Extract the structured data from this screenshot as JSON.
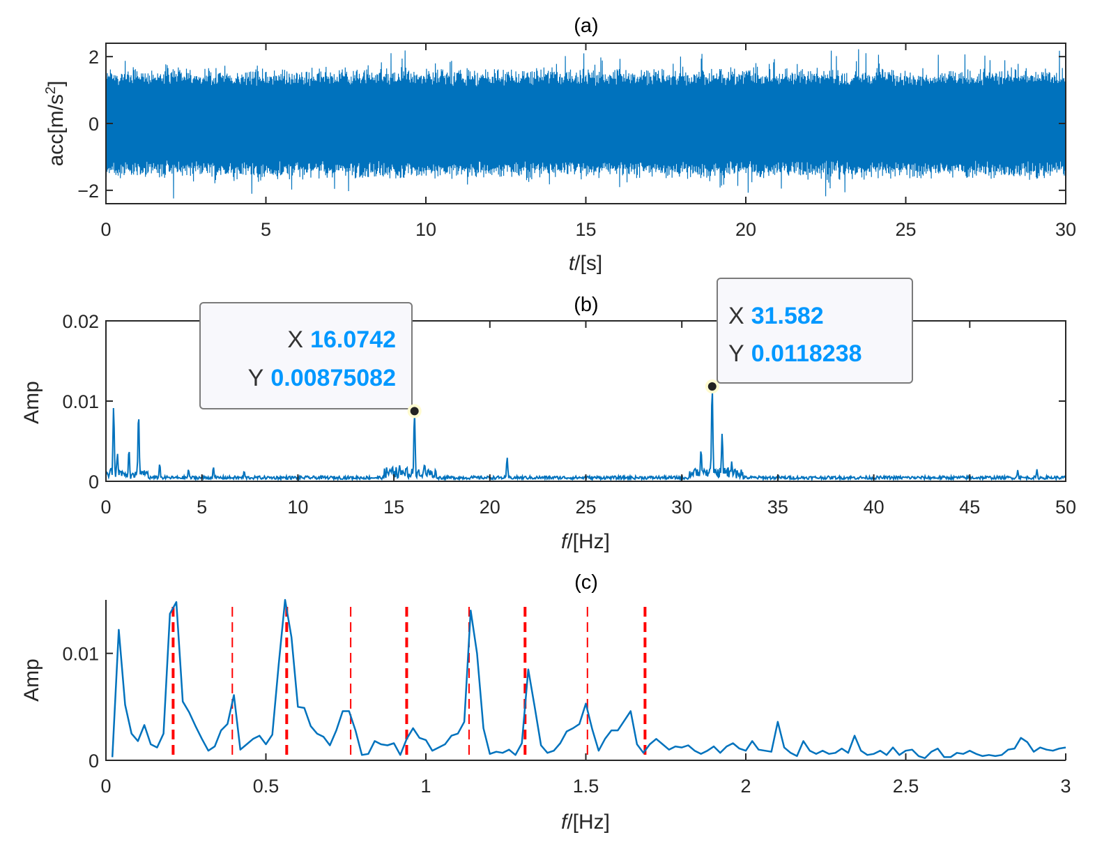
{
  "chart_data": [
    {
      "type": "line",
      "title": "(a)",
      "ylabel": "acc[m/s",
      "ylabel_sup": "2",
      "ylabel_end": "]",
      "xlabel_var": "t",
      "xlabel_unit": "/[s]",
      "xlim": [
        0,
        30
      ],
      "ylim": [
        -2.4,
        2.4
      ],
      "xticks": [
        "0",
        "5",
        "10",
        "15",
        "20",
        "25",
        "30"
      ],
      "yticks": [
        "−2",
        "0",
        "2"
      ],
      "series": [
        {
          "color": "#0072bd",
          "description": "dense random acceleration signal, envelope approx ±1.6 with peaks up to ±2.3"
        }
      ]
    },
    {
      "type": "line",
      "title": "(b)",
      "ylabel": "Amp",
      "xlabel_var": "f",
      "xlabel_unit": "/[Hz]",
      "xlim": [
        0,
        50
      ],
      "ylim": [
        0,
        0.02
      ],
      "xticks": [
        "0",
        "5",
        "10",
        "15",
        "20",
        "25",
        "30",
        "35",
        "40",
        "45",
        "50"
      ],
      "yticks": [
        "0",
        "0.01",
        "0.02"
      ],
      "peaks": [
        {
          "x": 0.4,
          "y": 0.0093
        },
        {
          "x": 0.6,
          "y": 0.0035
        },
        {
          "x": 1.2,
          "y": 0.004
        },
        {
          "x": 1.7,
          "y": 0.0085
        },
        {
          "x": 2.8,
          "y": 0.0022
        },
        {
          "x": 4.3,
          "y": 0.0015
        },
        {
          "x": 5.6,
          "y": 0.0018
        },
        {
          "x": 7.2,
          "y": 0.0013
        },
        {
          "x": 15.3,
          "y": 0.002
        },
        {
          "x": 16.0742,
          "y": 0.00875082
        },
        {
          "x": 16.6,
          "y": 0.0022
        },
        {
          "x": 20.9,
          "y": 0.003
        },
        {
          "x": 31.0,
          "y": 0.004
        },
        {
          "x": 31.582,
          "y": 0.0118238
        },
        {
          "x": 32.1,
          "y": 0.006
        },
        {
          "x": 32.6,
          "y": 0.0025
        },
        {
          "x": 47.5,
          "y": 0.0014
        },
        {
          "x": 48.5,
          "y": 0.0015
        }
      ],
      "datatips": [
        {
          "x_key": "X",
          "x_val": "16.0742",
          "y_key": "Y",
          "y_val": "0.00875082",
          "x": 16.0742,
          "y": 0.00875082
        },
        {
          "x_key": "X",
          "x_val": "31.582",
          "y_key": "Y",
          "y_val": "0.0118238",
          "x": 31.582,
          "y": 0.0118238
        }
      ]
    },
    {
      "type": "line",
      "title": "(c)",
      "ylabel": "Amp",
      "xlabel_var": "f",
      "xlabel_unit": "/[Hz]",
      "xlim": [
        0,
        3
      ],
      "ylim": [
        0,
        0.015
      ],
      "xticks": [
        "0",
        "0.5",
        "1",
        "1.5",
        "2",
        "2.5",
        "3"
      ],
      "yticks": [
        "0",
        "0.01"
      ],
      "x": [
        0.02,
        0.04,
        0.06,
        0.08,
        0.1,
        0.12,
        0.14,
        0.16,
        0.18,
        0.2,
        0.22,
        0.24,
        0.26,
        0.28,
        0.3,
        0.32,
        0.34,
        0.36,
        0.38,
        0.4,
        0.42,
        0.44,
        0.46,
        0.48,
        0.5,
        0.52,
        0.54,
        0.56,
        0.58,
        0.6,
        0.62,
        0.64,
        0.66,
        0.68,
        0.7,
        0.72,
        0.74,
        0.76,
        0.78,
        0.8,
        0.82,
        0.84,
        0.86,
        0.88,
        0.9,
        0.92,
        0.94,
        0.96,
        0.98,
        1.0,
        1.02,
        1.04,
        1.06,
        1.08,
        1.1,
        1.12,
        1.14,
        1.16,
        1.18,
        1.2,
        1.22,
        1.24,
        1.26,
        1.28,
        1.3,
        1.32,
        1.34,
        1.36,
        1.38,
        1.4,
        1.42,
        1.44,
        1.46,
        1.48,
        1.5,
        1.52,
        1.54,
        1.56,
        1.58,
        1.6,
        1.62,
        1.64,
        1.66,
        1.68,
        1.7,
        1.72,
        1.74,
        1.76,
        1.78,
        1.8,
        1.82,
        1.84,
        1.86,
        1.88,
        1.9,
        1.92,
        1.94,
        1.96,
        1.98,
        2.0,
        2.02,
        2.04,
        2.06,
        2.08,
        2.1,
        2.12,
        2.14,
        2.16,
        2.18,
        2.2,
        2.22,
        2.24,
        2.26,
        2.28,
        2.3,
        2.32,
        2.34,
        2.36,
        2.38,
        2.4,
        2.42,
        2.44,
        2.46,
        2.48,
        2.5,
        2.52,
        2.54,
        2.56,
        2.58,
        2.6,
        2.62,
        2.64,
        2.66,
        2.68,
        2.7,
        2.72,
        2.74,
        2.76,
        2.78,
        2.8,
        2.82,
        2.84,
        2.86,
        2.88,
        2.9,
        2.92,
        2.94,
        2.96,
        2.98,
        3.0
      ],
      "y": [
        0.0003,
        0.0122,
        0.0052,
        0.0025,
        0.0018,
        0.0033,
        0.0015,
        0.0012,
        0.0025,
        0.0137,
        0.0148,
        0.0055,
        0.0045,
        0.0032,
        0.002,
        0.0009,
        0.0013,
        0.0028,
        0.0034,
        0.0061,
        0.001,
        0.0015,
        0.002,
        0.0023,
        0.0015,
        0.0024,
        0.009,
        0.015,
        0.0115,
        0.005,
        0.0049,
        0.0032,
        0.0025,
        0.0022,
        0.0014,
        0.0028,
        0.0046,
        0.0046,
        0.0028,
        0.0005,
        0.0006,
        0.0018,
        0.0015,
        0.0014,
        0.0016,
        0.0005,
        0.002,
        0.003,
        0.0021,
        0.0019,
        0.0009,
        0.0012,
        0.0015,
        0.0023,
        0.0025,
        0.0036,
        0.014,
        0.01,
        0.003,
        0.0006,
        0.0008,
        0.0007,
        0.001,
        0.0005,
        0.0016,
        0.0085,
        0.005,
        0.0014,
        0.0007,
        0.0009,
        0.0016,
        0.0027,
        0.003,
        0.0034,
        0.0053,
        0.0029,
        0.0009,
        0.002,
        0.0028,
        0.0028,
        0.0037,
        0.0046,
        0.0015,
        0.0007,
        0.0015,
        0.002,
        0.0015,
        0.001,
        0.0013,
        0.0012,
        0.0014,
        0.0009,
        0.0006,
        0.0009,
        0.0013,
        0.0007,
        0.0013,
        0.0016,
        0.0011,
        0.0009,
        0.0018,
        0.001,
        0.0009,
        0.0008,
        0.0036,
        0.0012,
        0.0007,
        0.0004,
        0.0018,
        0.0009,
        0.0006,
        0.0009,
        0.0006,
        0.0007,
        0.0011,
        0.0007,
        0.0023,
        0.0009,
        0.0005,
        0.0006,
        0.0009,
        0.0005,
        0.0012,
        0.0005,
        0.0009,
        0.001,
        0.0004,
        0.0002,
        0.0008,
        0.0011,
        0.0003,
        0.0003,
        0.0007,
        0.0006,
        0.0009,
        0.0006,
        0.0004,
        0.0005,
        0.0004,
        0.0005,
        0.001,
        0.0011,
        0.0021,
        0.0017,
        0.0008,
        0.0012,
        0.001,
        0.0009,
        0.0011,
        0.0012
      ],
      "reference_lines": {
        "color": "#ff0000",
        "x": [
          0.21,
          0.395,
          0.565,
          0.765,
          0.94,
          1.135,
          1.31,
          1.505,
          1.685
        ]
      }
    }
  ]
}
